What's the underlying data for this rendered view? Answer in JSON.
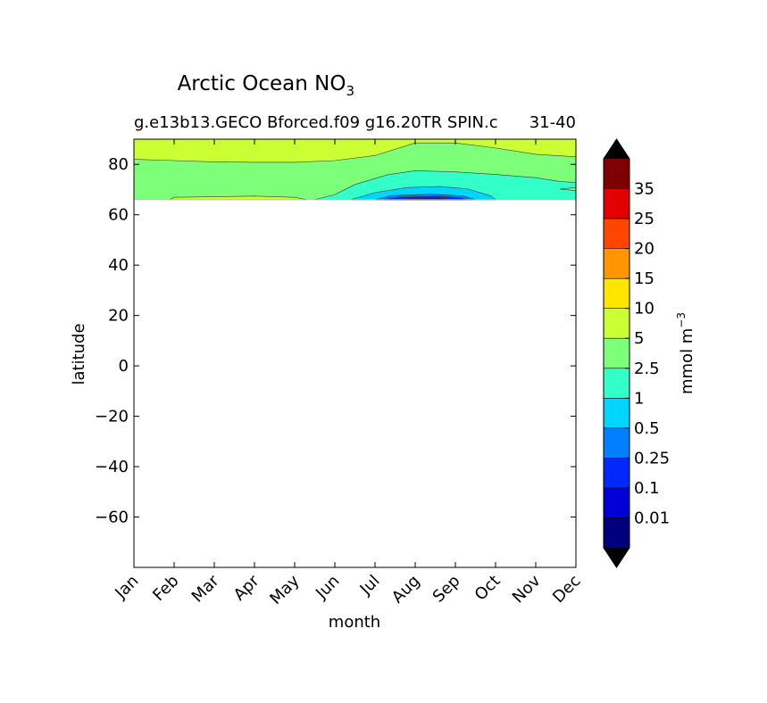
{
  "chart_data": {
    "type": "contourf",
    "title": "Arctic Ocean NO",
    "title_subscript": "3",
    "subtitle_left": "g.e13b13.GECO Bforced.f09 g16.20TR SPIN.c",
    "subtitle_right": "31-40",
    "xlabel": "month",
    "ylabel": "latitude",
    "x_ticks": [
      "Jan",
      "Feb",
      "Mar",
      "Apr",
      "May",
      "Jun",
      "Jul",
      "Aug",
      "Sep",
      "Oct",
      "Nov",
      "Dec"
    ],
    "xlim": [
      1,
      12
    ],
    "ylim": [
      -80,
      90
    ],
    "y_ticks": [
      80,
      60,
      40,
      20,
      0,
      -20,
      -40,
      -60
    ],
    "y_tick_labels": [
      "80",
      "60",
      "40",
      "20",
      "0",
      "−20",
      "−40",
      "−60"
    ],
    "data_lat_min": 66,
    "contour_bands": [
      {
        "band": "2.5-5",
        "color": "#7dff7a",
        "region": "background 66-90N"
      },
      {
        "band": "5-10",
        "color": "#ccff33",
        "upper_boundary_lat": [
          82,
          81.5,
          81,
          80.8,
          80.8,
          81.5,
          83.5,
          88.5,
          88.5,
          86.5,
          84,
          83
        ]
      },
      {
        "band": "1-2.5",
        "color": "#33ffc9",
        "months": [
          5.5,
          12
        ],
        "upper_boundary_lat": [
          null,
          null,
          null,
          null,
          67,
          72,
          76.5,
          77.5,
          77,
          76,
          74.5,
          73
        ]
      },
      {
        "band": "0.5-1",
        "color": "#00d5ff",
        "months": [
          6.4,
          9.9
        ],
        "upper_boundary_lat": [
          null,
          null,
          null,
          null,
          null,
          67,
          70,
          71,
          70.5,
          67,
          null,
          null
        ]
      },
      {
        "band": "0.25-0.5",
        "color": "#0080ff",
        "months": [
          7,
          9.5
        ]
      },
      {
        "band": "0.1-0.25",
        "color": "#0028ff",
        "months": [
          7.2,
          9.3
        ]
      },
      {
        "band": "0.01-0.1",
        "color": "#0000d6",
        "months": [
          7.5,
          9
        ]
      }
    ],
    "colorbar": {
      "label": "mmol m",
      "label_superscript": "−3",
      "levels": [
        "0.01",
        "0.1",
        "0.25",
        "0.5",
        "1",
        "2.5",
        "5",
        "10",
        "15",
        "20",
        "25",
        "35"
      ],
      "colors": [
        "#00007f",
        "#0000d6",
        "#0028ff",
        "#0080ff",
        "#00d5ff",
        "#33ffc9",
        "#7dff7a",
        "#ccff33",
        "#ffe500",
        "#ff9600",
        "#ff4600",
        "#e20000",
        "#7f0000"
      ],
      "extend": "both",
      "extend_color": "#000000"
    }
  }
}
